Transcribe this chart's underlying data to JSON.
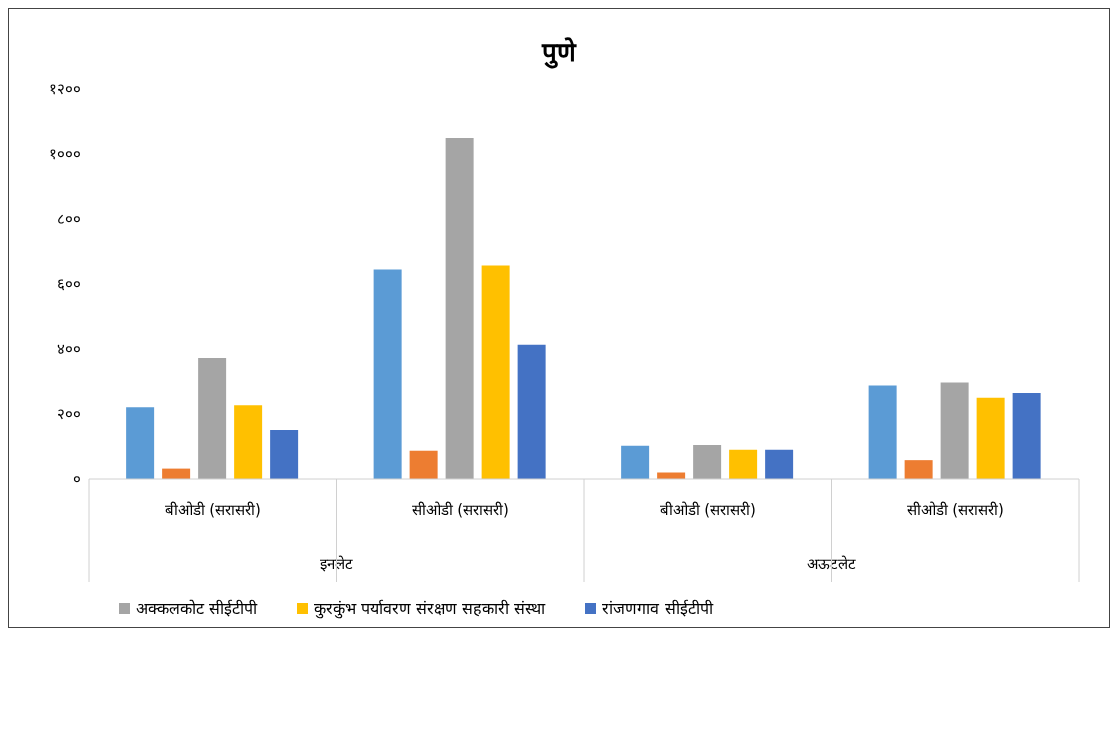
{
  "chart_data": {
    "type": "bar",
    "title": "पुणे",
    "categories": [
      "बीओडी (सरासरी)",
      "सीओडी  (सरासरी)",
      "बीओडी (सरासरी)",
      "सीओडी  (सरासरी)"
    ],
    "annotations": [
      "इनलेट",
      "अऊटलेट"
    ],
    "series": [
      {
        "color": "#5b9bd5",
        "values": [
          221,
          645,
          102,
          288
        ]
      },
      {
        "color": "#ed7d31",
        "values": [
          32,
          87,
          20,
          58
        ]
      },
      {
        "name": "अक्कलकोट सीईटीपी",
        "color": "#a5a5a5",
        "values": [
          372,
          1049,
          105,
          297
        ]
      },
      {
        "name": "कुरकुंभ पर्यावरण संरक्षण सहकारी संस्था",
        "color": "#ffc000",
        "values": [
          227,
          657,
          90,
          250
        ]
      },
      {
        "name": "रांजणगाव सीईटीपी",
        "color": "#4472c4",
        "values": [
          151,
          413,
          90,
          265
        ]
      }
    ],
    "ylim": [
      0,
      1200
    ],
    "yticks": [
      {
        "value": 0,
        "label": "०"
      },
      {
        "value": 200,
        "label": "२००"
      },
      {
        "value": 400,
        "label": "४००"
      },
      {
        "value": 600,
        "label": "६००"
      },
      {
        "value": 800,
        "label": "८००"
      },
      {
        "value": 1000,
        "label": "१०००"
      },
      {
        "value": 1200,
        "label": "१२००"
      }
    ],
    "grid": false,
    "legend": "bottom"
  }
}
